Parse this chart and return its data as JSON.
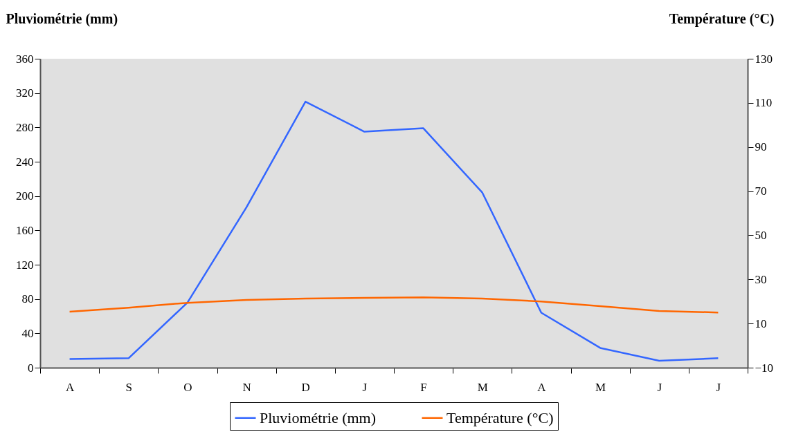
{
  "chart_data": {
    "type": "line",
    "ylabel": "Pluviométrie (mm)",
    "y2label": "Température (°C)",
    "categories": [
      "A",
      "S",
      "O",
      "N",
      "D",
      "J",
      "F",
      "M",
      "A",
      "M",
      "J",
      "J"
    ],
    "series": [
      {
        "name": "Pluviométrie (mm)",
        "color": "#3366ff",
        "values": [
          10,
          11,
          76,
          187,
          310,
          275,
          279,
          204,
          64,
          23,
          8,
          11
        ]
      },
      {
        "name": "Température (°C)",
        "color": "#ff6600",
        "axis": "y2",
        "values": [
          15.4,
          17.2,
          19.4,
          20.7,
          21.3,
          21.6,
          21.9,
          21.3,
          20,
          17.9,
          15.7,
          15
        ]
      }
    ],
    "ylim": [
      0,
      360
    ],
    "yticks": [
      0,
      40,
      80,
      120,
      160,
      200,
      240,
      280,
      320,
      360
    ],
    "y2lim": [
      -10,
      130
    ],
    "y2ticks": [
      -10,
      10,
      30,
      50,
      70,
      90,
      110,
      130
    ],
    "legend": "bottom"
  }
}
